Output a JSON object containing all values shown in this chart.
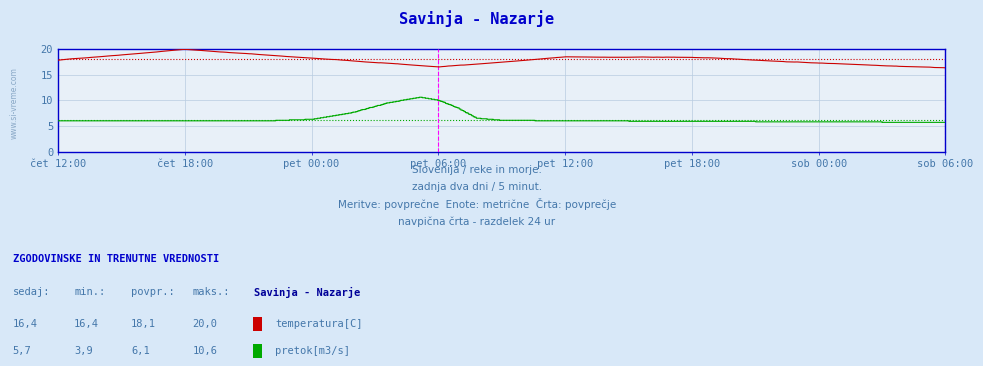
{
  "title": "Savinja - Nazarje",
  "title_color": "#0000cc",
  "bg_color": "#d8e8f8",
  "plot_bg_color": "#e8f0f8",
  "grid_color": "#b8cce0",
  "x_labels": [
    "čet 12:00",
    "čet 18:00",
    "pet 00:00",
    "pet 06:00",
    "pet 12:00",
    "pet 18:00",
    "sob 00:00",
    "sob 06:00"
  ],
  "y_ticks": [
    0,
    5,
    10,
    15,
    20
  ],
  "y_min": 0,
  "y_max": 20,
  "temp_color": "#cc0000",
  "flow_color": "#00aa00",
  "avg_temp_line": 18.1,
  "avg_flow_line": 6.1,
  "vline_color": "#ff00ff",
  "vline_pos": 0.4286,
  "border_color": "#0000cc",
  "subtitle1": "Slovenija / reke in morje.",
  "subtitle2": "zadnja dva dni / 5 minut.",
  "subtitle3": "Meritve: povprečne  Enote: metrične  Črta: povprečje",
  "subtitle4": "navpična črta - razdelek 24 ur",
  "subtitle_color": "#4477aa",
  "legend_title": "ZGODOVINSKE IN TRENUTNE VREDNOSTI",
  "legend_headers": [
    "sedaj:",
    "min.:",
    "povpr.:",
    "maks.:"
  ],
  "legend_temp": [
    "16,4",
    "16,4",
    "18,1",
    "20,0"
  ],
  "legend_flow": [
    "5,7",
    "3,9",
    "6,1",
    "10,6"
  ],
  "legend_station": "Savinja - Nazarje",
  "legend_temp_label": "temperatura[C]",
  "legend_flow_label": "pretok[m3/s]",
  "watermark": "www.si-vreme.com",
  "n_points": 576
}
